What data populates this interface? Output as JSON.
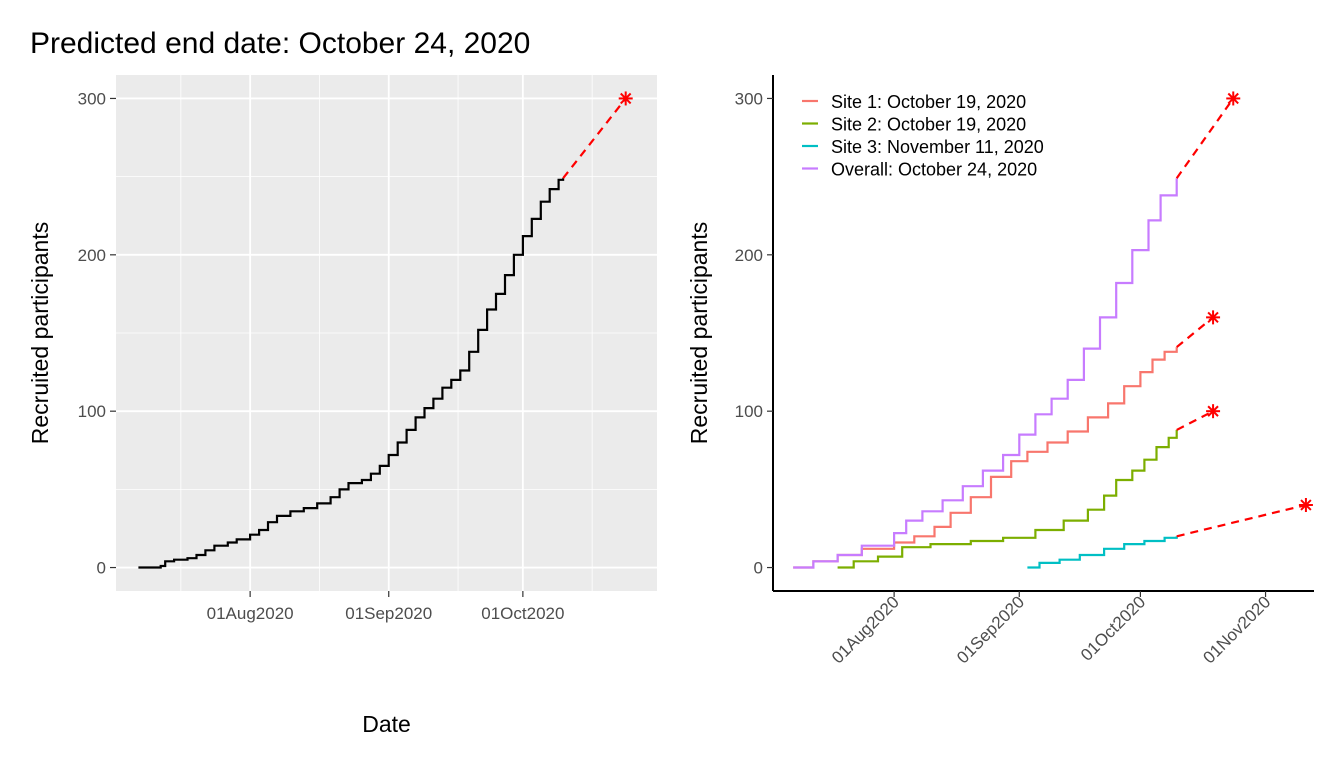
{
  "title": "Predicted end date: October 24, 2020",
  "chart_data": [
    {
      "type": "line",
      "xlabel": "Date",
      "ylabel": "Recruited participants",
      "xlim": [
        "2020-07-02",
        "2020-10-31"
      ],
      "ylim": [
        -15,
        315
      ],
      "x_ticks": [
        {
          "date": "2020-08-01",
          "label": "01Aug2020"
        },
        {
          "date": "2020-09-01",
          "label": "01Sep2020"
        },
        {
          "date": "2020-10-01",
          "label": "01Oct2020"
        }
      ],
      "y_ticks": [
        0,
        100,
        200,
        300
      ],
      "grid": true,
      "series": [
        {
          "color": "#000000",
          "style": "step",
          "points": [
            [
              "2020-07-07",
              0
            ],
            [
              "2020-07-12",
              1
            ],
            [
              "2020-07-13",
              4
            ],
            [
              "2020-07-15",
              5
            ],
            [
              "2020-07-18",
              6
            ],
            [
              "2020-07-20",
              8
            ],
            [
              "2020-07-22",
              11
            ],
            [
              "2020-07-24",
              14
            ],
            [
              "2020-07-27",
              16
            ],
            [
              "2020-07-29",
              18
            ],
            [
              "2020-08-01",
              21
            ],
            [
              "2020-08-03",
              24
            ],
            [
              "2020-08-05",
              29
            ],
            [
              "2020-08-07",
              33
            ],
            [
              "2020-08-10",
              36
            ],
            [
              "2020-08-13",
              38
            ],
            [
              "2020-08-16",
              41
            ],
            [
              "2020-08-19",
              45
            ],
            [
              "2020-08-21",
              50
            ],
            [
              "2020-08-23",
              54
            ],
            [
              "2020-08-26",
              56
            ],
            [
              "2020-08-28",
              60
            ],
            [
              "2020-08-30",
              65
            ],
            [
              "2020-09-01",
              72
            ],
            [
              "2020-09-03",
              80
            ],
            [
              "2020-09-05",
              88
            ],
            [
              "2020-09-07",
              96
            ],
            [
              "2020-09-09",
              102
            ],
            [
              "2020-09-11",
              108
            ],
            [
              "2020-09-13",
              115
            ],
            [
              "2020-09-15",
              120
            ],
            [
              "2020-09-17",
              126
            ],
            [
              "2020-09-19",
              138
            ],
            [
              "2020-09-21",
              152
            ],
            [
              "2020-09-23",
              165
            ],
            [
              "2020-09-25",
              175
            ],
            [
              "2020-09-27",
              187
            ],
            [
              "2020-09-29",
              200
            ],
            [
              "2020-10-01",
              212
            ],
            [
              "2020-10-03",
              223
            ],
            [
              "2020-10-05",
              234
            ],
            [
              "2020-10-07",
              242
            ],
            [
              "2020-10-09",
              248
            ],
            [
              "2020-10-10",
              249
            ]
          ]
        },
        {
          "color": "#ff0000",
          "style": "dashed",
          "points": [
            [
              "2020-10-10",
              249
            ],
            [
              "2020-10-24",
              300
            ]
          ]
        }
      ],
      "end_markers": [
        {
          "date": "2020-10-24",
          "value": 300,
          "color": "#ff0000"
        }
      ]
    },
    {
      "type": "line",
      "xlabel": "",
      "ylabel": "Recruited participants",
      "xlim": [
        "2020-07-02",
        "2020-11-13"
      ],
      "ylim": [
        -15,
        315
      ],
      "x_ticks": [
        {
          "date": "2020-08-01",
          "label": "01Aug2020"
        },
        {
          "date": "2020-09-01",
          "label": "01Sep2020"
        },
        {
          "date": "2020-10-01",
          "label": "01Oct2020"
        },
        {
          "date": "2020-11-01",
          "label": "01Nov2020"
        }
      ],
      "y_ticks": [
        0,
        100,
        200,
        300
      ],
      "grid": false,
      "legend_position": "top-left",
      "series": [
        {
          "name": "Site 1: October 19, 2020",
          "color": "#f8766d",
          "points": [
            [
              "2020-07-07",
              0
            ],
            [
              "2020-07-12",
              4
            ],
            [
              "2020-07-18",
              8
            ],
            [
              "2020-07-24",
              12
            ],
            [
              "2020-08-01",
              16
            ],
            [
              "2020-08-06",
              20
            ],
            [
              "2020-08-11",
              26
            ],
            [
              "2020-08-15",
              35
            ],
            [
              "2020-08-20",
              45
            ],
            [
              "2020-08-25",
              58
            ],
            [
              "2020-08-30",
              68
            ],
            [
              "2020-09-03",
              74
            ],
            [
              "2020-09-08",
              80
            ],
            [
              "2020-09-13",
              87
            ],
            [
              "2020-09-18",
              96
            ],
            [
              "2020-09-23",
              105
            ],
            [
              "2020-09-27",
              116
            ],
            [
              "2020-10-01",
              125
            ],
            [
              "2020-10-04",
              133
            ],
            [
              "2020-10-07",
              138
            ],
            [
              "2020-10-10",
              141
            ]
          ]
        },
        {
          "name": "Site 2: October 19, 2020",
          "color": "#7cae00",
          "points": [
            [
              "2020-07-18",
              0
            ],
            [
              "2020-07-22",
              4
            ],
            [
              "2020-07-28",
              7
            ],
            [
              "2020-08-03",
              13
            ],
            [
              "2020-08-10",
              15
            ],
            [
              "2020-08-20",
              17
            ],
            [
              "2020-08-28",
              19
            ],
            [
              "2020-09-05",
              24
            ],
            [
              "2020-09-12",
              30
            ],
            [
              "2020-09-18",
              37
            ],
            [
              "2020-09-22",
              46
            ],
            [
              "2020-09-25",
              56
            ],
            [
              "2020-09-29",
              62
            ],
            [
              "2020-10-02",
              69
            ],
            [
              "2020-10-05",
              77
            ],
            [
              "2020-10-08",
              83
            ],
            [
              "2020-10-10",
              88
            ]
          ]
        },
        {
          "name": "Site 3: November 11, 2020",
          "color": "#00bfc4",
          "points": [
            [
              "2020-09-03",
              0
            ],
            [
              "2020-09-06",
              3
            ],
            [
              "2020-09-11",
              5
            ],
            [
              "2020-09-16",
              8
            ],
            [
              "2020-09-22",
              12
            ],
            [
              "2020-09-27",
              15
            ],
            [
              "2020-10-02",
              17
            ],
            [
              "2020-10-07",
              19
            ],
            [
              "2020-10-10",
              20
            ]
          ]
        },
        {
          "name": "Overall: October 24, 2020",
          "color": "#c77cff",
          "points": [
            [
              "2020-07-07",
              0
            ],
            [
              "2020-07-12",
              4
            ],
            [
              "2020-07-18",
              8
            ],
            [
              "2020-07-24",
              14
            ],
            [
              "2020-08-01",
              22
            ],
            [
              "2020-08-04",
              30
            ],
            [
              "2020-08-08",
              36
            ],
            [
              "2020-08-13",
              43
            ],
            [
              "2020-08-18",
              52
            ],
            [
              "2020-08-23",
              62
            ],
            [
              "2020-08-28",
              72
            ],
            [
              "2020-09-01",
              85
            ],
            [
              "2020-09-05",
              98
            ],
            [
              "2020-09-09",
              108
            ],
            [
              "2020-09-13",
              120
            ],
            [
              "2020-09-17",
              140
            ],
            [
              "2020-09-21",
              160
            ],
            [
              "2020-09-25",
              182
            ],
            [
              "2020-09-29",
              203
            ],
            [
              "2020-10-03",
              222
            ],
            [
              "2020-10-06",
              238
            ],
            [
              "2020-10-10",
              249
            ]
          ]
        }
      ],
      "projections": [
        {
          "color": "#ff0000",
          "from": [
            "2020-10-10",
            141
          ],
          "to": [
            "2020-10-19",
            160
          ]
        },
        {
          "color": "#ff0000",
          "from": [
            "2020-10-10",
            88
          ],
          "to": [
            "2020-10-19",
            100
          ]
        },
        {
          "color": "#ff0000",
          "from": [
            "2020-10-10",
            20
          ],
          "to": [
            "2020-11-11",
            40
          ]
        },
        {
          "color": "#ff0000",
          "from": [
            "2020-10-10",
            249
          ],
          "to": [
            "2020-10-24",
            300
          ]
        }
      ],
      "end_markers": [
        {
          "date": "2020-10-19",
          "value": 160,
          "color": "#ff0000"
        },
        {
          "date": "2020-10-19",
          "value": 100,
          "color": "#ff0000"
        },
        {
          "date": "2020-11-11",
          "value": 40,
          "color": "#ff0000"
        },
        {
          "date": "2020-10-24",
          "value": 300,
          "color": "#ff0000"
        }
      ]
    }
  ]
}
